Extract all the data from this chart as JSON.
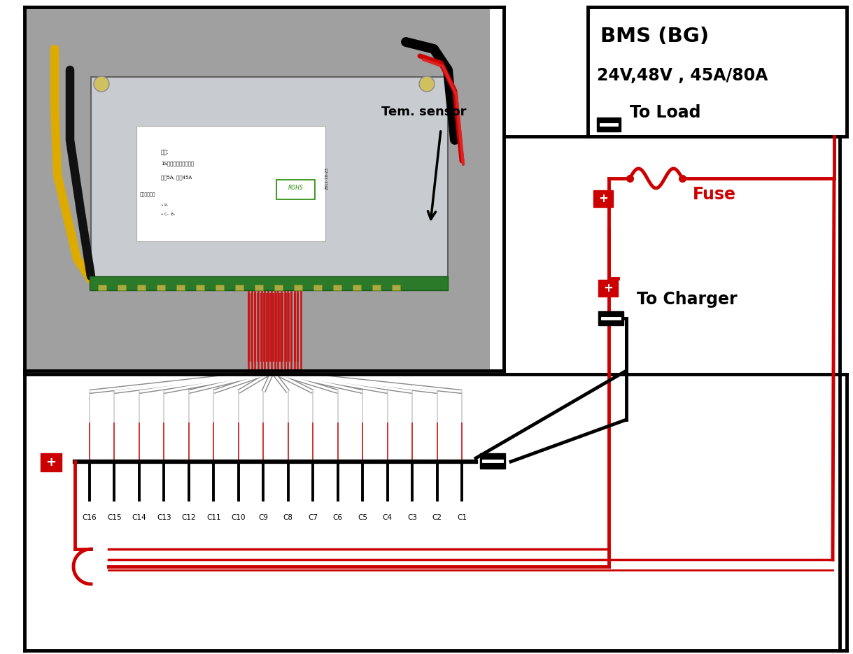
{
  "bg_color": "#ffffff",
  "BLACK": "#000000",
  "RED": "#cc0000",
  "DARKRED": "#8b0000",
  "GRAY_PHOTO": "#a8a8a8",
  "GRAY_BMS": "#b8bcc0",
  "GRAY_WIRE": "#888888",
  "cell_labels": [
    "C16",
    "C15",
    "C14",
    "C13",
    "C12",
    "C11",
    "C10",
    "C9",
    "C8",
    "C7",
    "C6",
    "C5",
    "C4",
    "C3",
    "C2",
    "C1"
  ],
  "label_bms": "BMS (BG)",
  "label_spec": "24V,48V , 45A/80A",
  "label_to_load": "To Load",
  "label_to_charger": "To Charger",
  "label_fuse": "Fuse",
  "label_tem": "Tem. sensor",
  "lw_main": 3.5,
  "lw_wire": 2.5,
  "lw_bus": 4.5
}
